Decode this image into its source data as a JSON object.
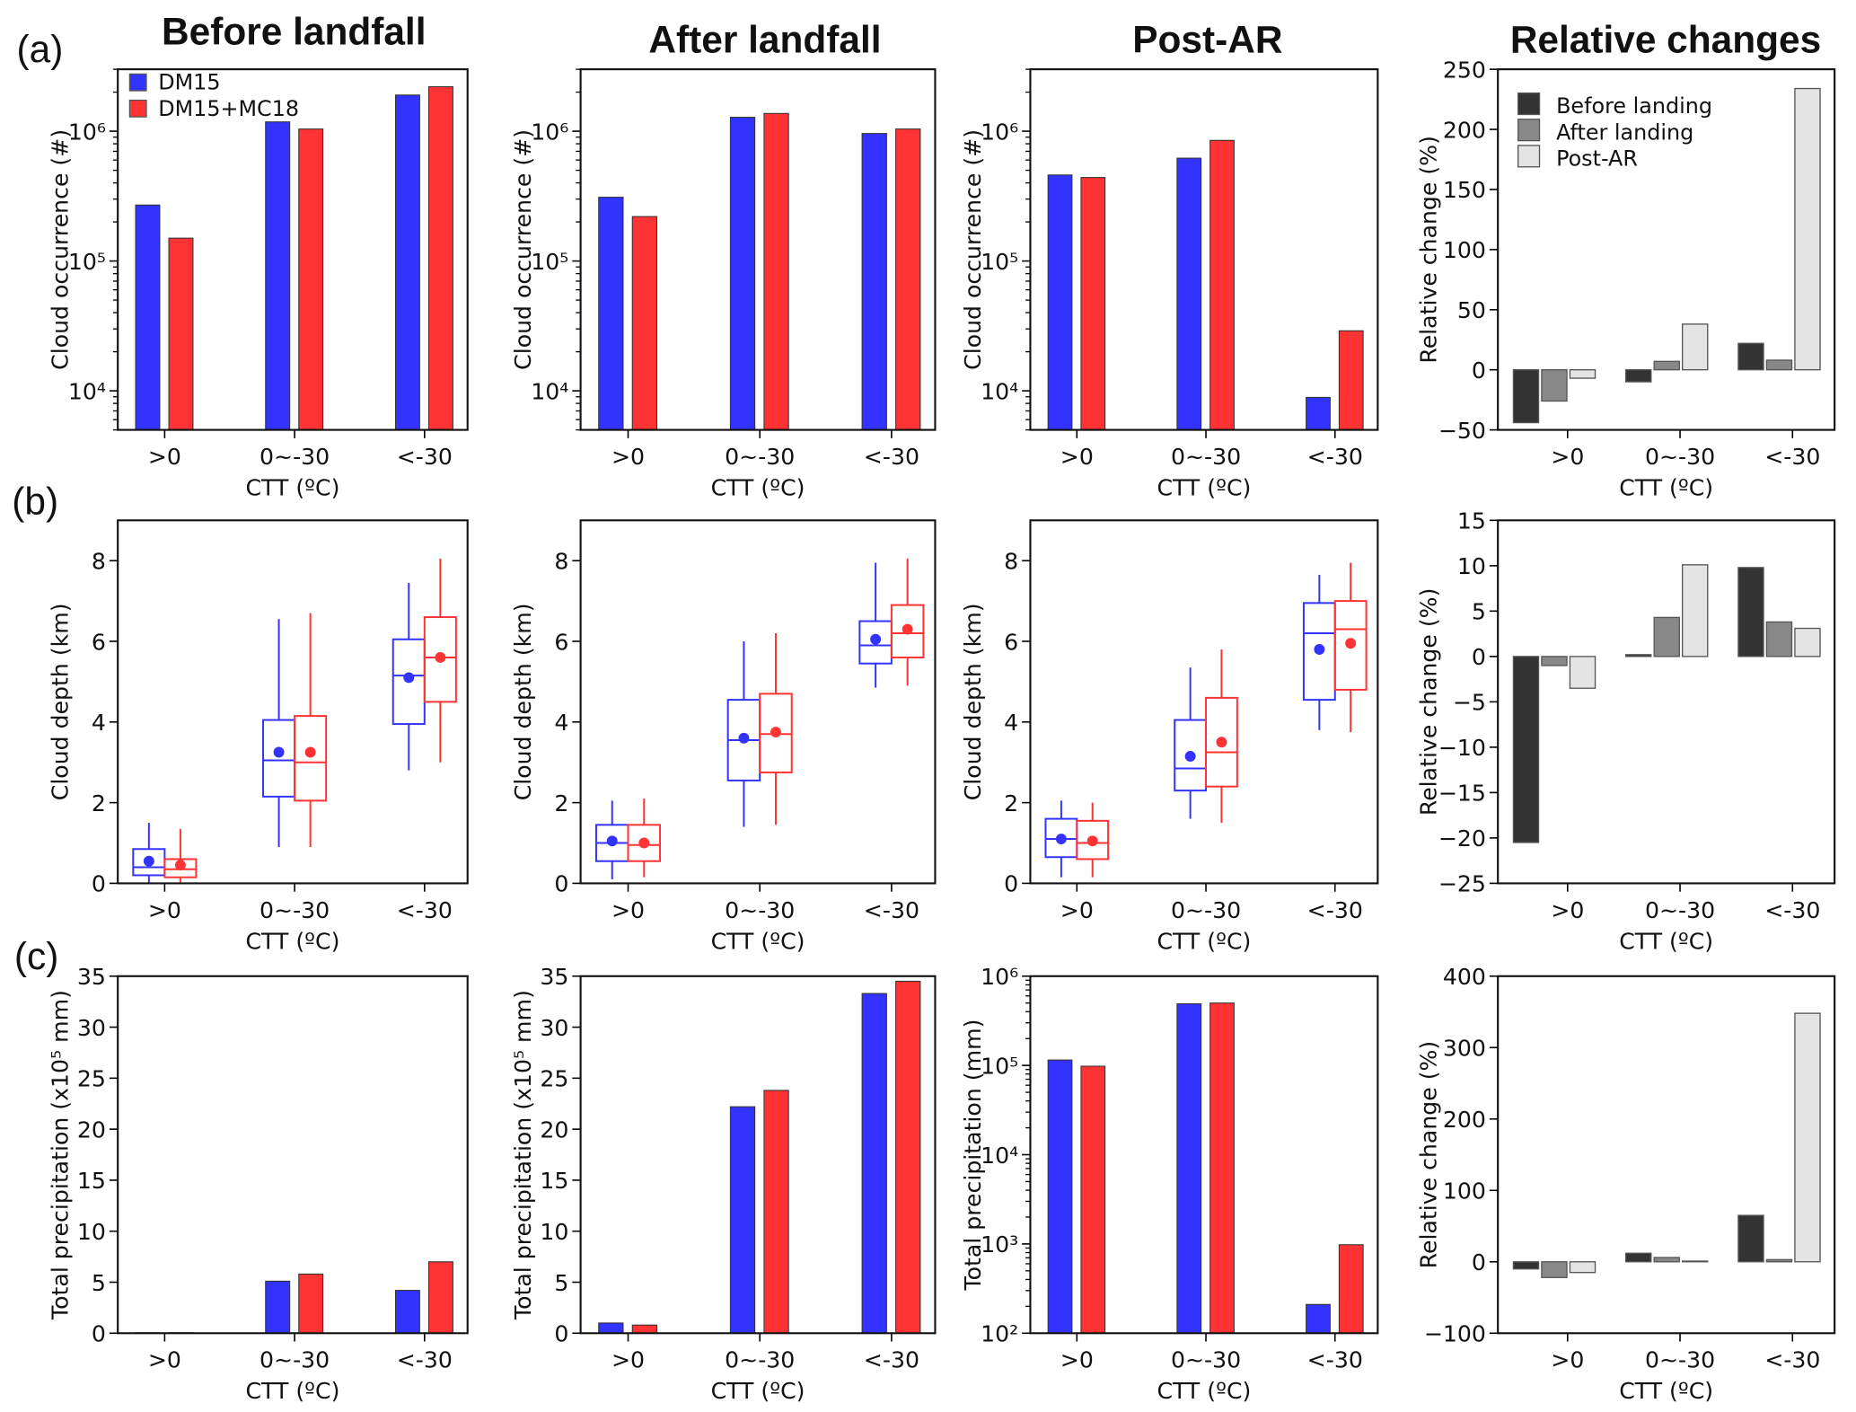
{
  "figure": {
    "panel_labels": [
      "(a)",
      "(b)",
      "(c)"
    ],
    "column_titles": [
      "Before landfall",
      "After landfall",
      "Post-AR",
      "Relative changes"
    ]
  },
  "colors": {
    "DM15": "#3333ff",
    "DM15+MC18": "#ff3333",
    "Before landing": "#333333",
    "After landing": "#888888",
    "Post-AR": "#e4e4e4"
  },
  "chart_data": [
    {
      "id": "a1",
      "type": "bar",
      "yscale": "log",
      "ylim": [
        5000,
        3000000
      ],
      "yticks": [
        10000,
        100000,
        1000000
      ],
      "ytick_labels": [
        "10⁴",
        "10⁵",
        "10⁶"
      ],
      "ylabel": "Cloud occurrence (#)",
      "xlabel": "CTT (ºC)",
      "categories": [
        ">0",
        "0~-30",
        "<-30"
      ],
      "legend": {
        "position": "top-left",
        "entries": [
          "DM15",
          "DM15+MC18"
        ]
      },
      "series": [
        {
          "name": "DM15",
          "values": [
            270000,
            1180000,
            1900000
          ]
        },
        {
          "name": "DM15+MC18",
          "values": [
            150000,
            1040000,
            2200000
          ]
        }
      ]
    },
    {
      "id": "a2",
      "type": "bar",
      "yscale": "log",
      "ylim": [
        5000,
        3000000
      ],
      "yticks": [
        10000,
        100000,
        1000000
      ],
      "ytick_labels": [
        "10⁴",
        "10⁵",
        "10⁶"
      ],
      "ylabel": "Cloud occurrence (#)",
      "xlabel": "CTT (ºC)",
      "categories": [
        ">0",
        "0~-30",
        "<-30"
      ],
      "series": [
        {
          "name": "DM15",
          "values": [
            310000,
            1280000,
            960000
          ]
        },
        {
          "name": "DM15+MC18",
          "values": [
            220000,
            1370000,
            1040000
          ]
        }
      ]
    },
    {
      "id": "a3",
      "type": "bar",
      "yscale": "log",
      "ylim": [
        5000,
        3000000
      ],
      "yticks": [
        10000,
        100000,
        1000000
      ],
      "ytick_labels": [
        "10⁴",
        "10⁵",
        "10⁶"
      ],
      "ylabel": "Cloud occurrence (#)",
      "xlabel": "CTT (ºC)",
      "categories": [
        ">0",
        "0~-30",
        "<-30"
      ],
      "series": [
        {
          "name": "DM15",
          "values": [
            460000,
            620000,
            8900
          ]
        },
        {
          "name": "DM15+MC18",
          "values": [
            440000,
            850000,
            29000
          ]
        }
      ]
    },
    {
      "id": "a4",
      "type": "relbar",
      "yscale": "linear",
      "ylim": [
        -50,
        250
      ],
      "yticks": [
        -50,
        0,
        50,
        100,
        150,
        200,
        250
      ],
      "ytick_labels": [
        "−50",
        "0",
        "50",
        "100",
        "150",
        "200",
        "250"
      ],
      "ylabel": "Relative change (%)",
      "xlabel": "CTT (ºC)",
      "categories": [
        ">0",
        "0~-30",
        "<-30"
      ],
      "legend": {
        "position": "top-left",
        "entries": [
          "Before landing",
          "After landing",
          "Post-AR"
        ]
      },
      "series": [
        {
          "name": "Before landing",
          "values": [
            -44,
            -10,
            22
          ]
        },
        {
          "name": "After landing",
          "values": [
            -26,
            7,
            8
          ]
        },
        {
          "name": "Post-AR",
          "values": [
            -7,
            38,
            234
          ]
        }
      ]
    },
    {
      "id": "b1",
      "type": "box",
      "yscale": "linear",
      "ylim": [
        0,
        9
      ],
      "yticks": [
        0,
        2,
        4,
        6,
        8
      ],
      "ytick_labels": [
        "0",
        "2",
        "4",
        "6",
        "8"
      ],
      "ylabel": "Cloud depth (km)",
      "xlabel": "CTT (ºC)",
      "categories": [
        ">0",
        "0~-30",
        "<-30"
      ],
      "series": [
        {
          "name": "DM15",
          "boxes": [
            [
              0.0,
              0.2,
              0.4,
              0.85,
              1.5,
              0.55
            ],
            [
              0.9,
              2.15,
              3.05,
              4.05,
              6.55,
              3.25
            ],
            [
              2.8,
              3.95,
              5.15,
              6.05,
              7.45,
              5.1
            ]
          ]
        },
        {
          "name": "DM15+MC18",
          "boxes": [
            [
              0.0,
              0.15,
              0.35,
              0.6,
              1.35,
              0.45
            ],
            [
              0.9,
              2.05,
              3.0,
              4.15,
              6.7,
              3.25
            ],
            [
              3.0,
              4.5,
              5.6,
              6.6,
              8.05,
              5.6
            ]
          ]
        }
      ],
      "box_fields": [
        "whislo",
        "q1",
        "median",
        "q3",
        "whishi",
        "mean"
      ]
    },
    {
      "id": "b2",
      "type": "box",
      "yscale": "linear",
      "ylim": [
        0,
        9
      ],
      "yticks": [
        0,
        2,
        4,
        6,
        8
      ],
      "ytick_labels": [
        "0",
        "2",
        "4",
        "6",
        "8"
      ],
      "ylabel": "Cloud depth (km)",
      "xlabel": "CTT (ºC)",
      "categories": [
        ">0",
        "0~-30",
        "<-30"
      ],
      "series": [
        {
          "name": "DM15",
          "boxes": [
            [
              0.1,
              0.55,
              1.0,
              1.45,
              2.05,
              1.05
            ],
            [
              1.4,
              2.55,
              3.55,
              4.55,
              6.0,
              3.6
            ],
            [
              4.85,
              5.45,
              5.9,
              6.5,
              7.95,
              6.05
            ]
          ]
        },
        {
          "name": "DM15+MC18",
          "boxes": [
            [
              0.15,
              0.55,
              0.95,
              1.45,
              2.1,
              1.0
            ],
            [
              1.45,
              2.75,
              3.7,
              4.7,
              6.2,
              3.75
            ],
            [
              4.9,
              5.6,
              6.2,
              6.9,
              8.05,
              6.3
            ]
          ]
        }
      ],
      "box_fields": [
        "whislo",
        "q1",
        "median",
        "q3",
        "whishi",
        "mean"
      ]
    },
    {
      "id": "b3",
      "type": "box",
      "yscale": "linear",
      "ylim": [
        0,
        9
      ],
      "yticks": [
        0,
        2,
        4,
        6,
        8
      ],
      "ytick_labels": [
        "0",
        "2",
        "4",
        "6",
        "8"
      ],
      "ylabel": "Cloud depth (km)",
      "xlabel": "CTT (ºC)",
      "categories": [
        ">0",
        "0~-30",
        "<-30"
      ],
      "series": [
        {
          "name": "DM15",
          "boxes": [
            [
              0.15,
              0.65,
              1.1,
              1.6,
              2.05,
              1.1
            ],
            [
              1.6,
              2.3,
              2.85,
              4.05,
              5.35,
              3.15
            ],
            [
              3.8,
              4.55,
              6.2,
              6.95,
              7.65,
              5.8
            ]
          ]
        },
        {
          "name": "DM15+MC18",
          "boxes": [
            [
              0.15,
              0.6,
              1.0,
              1.55,
              2.0,
              1.05
            ],
            [
              1.5,
              2.4,
              3.25,
              4.6,
              5.8,
              3.5
            ],
            [
              3.75,
              4.8,
              6.3,
              7.0,
              7.95,
              5.95
            ]
          ]
        }
      ],
      "box_fields": [
        "whislo",
        "q1",
        "median",
        "q3",
        "whishi",
        "mean"
      ]
    },
    {
      "id": "b4",
      "type": "relbar",
      "yscale": "linear",
      "ylim": [
        -25,
        15
      ],
      "yticks": [
        -25,
        -20,
        -15,
        -10,
        -5,
        0,
        5,
        10,
        15
      ],
      "ytick_labels": [
        "−25",
        "−20",
        "−15",
        "−10",
        "−5",
        "0",
        "5",
        "10",
        "15"
      ],
      "ylabel": "Relative change (%)",
      "xlabel": "CTT (ºC)",
      "categories": [
        ">0",
        "0~-30",
        "<-30"
      ],
      "series": [
        {
          "name": "Before landing",
          "values": [
            -20.5,
            0.2,
            9.8
          ]
        },
        {
          "name": "After landing",
          "values": [
            -1.0,
            4.3,
            3.8
          ]
        },
        {
          "name": "Post-AR",
          "values": [
            -3.5,
            10.1,
            3.1
          ]
        }
      ]
    },
    {
      "id": "c1",
      "type": "bar",
      "yscale": "linear",
      "ylim": [
        0,
        35
      ],
      "yticks": [
        0,
        5,
        10,
        15,
        20,
        25,
        30,
        35
      ],
      "ytick_labels": [
        "0",
        "5",
        "10",
        "15",
        "20",
        "25",
        "30",
        "35"
      ],
      "ylabel": "Total precipitation (x10⁵ mm)",
      "xlabel": "CTT (ºC)",
      "categories": [
        ">0",
        "0~-30",
        "<-30"
      ],
      "series": [
        {
          "name": "DM15",
          "values": [
            0.05,
            5.1,
            4.2
          ]
        },
        {
          "name": "DM15+MC18",
          "values": [
            0.05,
            5.8,
            7.0
          ]
        }
      ]
    },
    {
      "id": "c2",
      "type": "bar",
      "yscale": "linear",
      "ylim": [
        0,
        35
      ],
      "yticks": [
        0,
        5,
        10,
        15,
        20,
        25,
        30,
        35
      ],
      "ytick_labels": [
        "0",
        "5",
        "10",
        "15",
        "20",
        "25",
        "30",
        "35"
      ],
      "ylabel": "Total precipitation (x10⁵ mm)",
      "xlabel": "CTT (ºC)",
      "categories": [
        ">0",
        "0~-30",
        "<-30"
      ],
      "series": [
        {
          "name": "DM15",
          "values": [
            1.0,
            22.2,
            33.3
          ]
        },
        {
          "name": "DM15+MC18",
          "values": [
            0.8,
            23.8,
            34.5
          ]
        }
      ]
    },
    {
      "id": "c3",
      "type": "bar",
      "yscale": "log",
      "ylim": [
        100,
        1000000
      ],
      "yticks": [
        100,
        1000,
        10000,
        100000,
        1000000
      ],
      "ytick_labels": [
        "10²",
        "10³",
        "10⁴",
        "10⁵",
        "10⁶"
      ],
      "ylabel": "Total precipitation (mm)",
      "xlabel": "CTT (ºC)",
      "categories": [
        ">0",
        "0~-30",
        "<-30"
      ],
      "series": [
        {
          "name": "DM15",
          "values": [
            115000,
            490000,
            210
          ]
        },
        {
          "name": "DM15+MC18",
          "values": [
            98000,
            500000,
            980
          ]
        }
      ]
    },
    {
      "id": "c4",
      "type": "relbar",
      "yscale": "linear",
      "ylim": [
        -100,
        400
      ],
      "yticks": [
        -100,
        0,
        100,
        200,
        300,
        400
      ],
      "ytick_labels": [
        "−100",
        "0",
        "100",
        "200",
        "300",
        "400"
      ],
      "ylabel": "Relative change (%)",
      "xlabel": "CTT (ºC)",
      "categories": [
        ">0",
        "0~-30",
        "<-30"
      ],
      "series": [
        {
          "name": "Before landing",
          "values": [
            -10,
            12,
            65
          ]
        },
        {
          "name": "After landing",
          "values": [
            -22,
            6,
            3
          ]
        },
        {
          "name": "Post-AR",
          "values": [
            -15,
            1,
            348
          ]
        }
      ]
    }
  ]
}
